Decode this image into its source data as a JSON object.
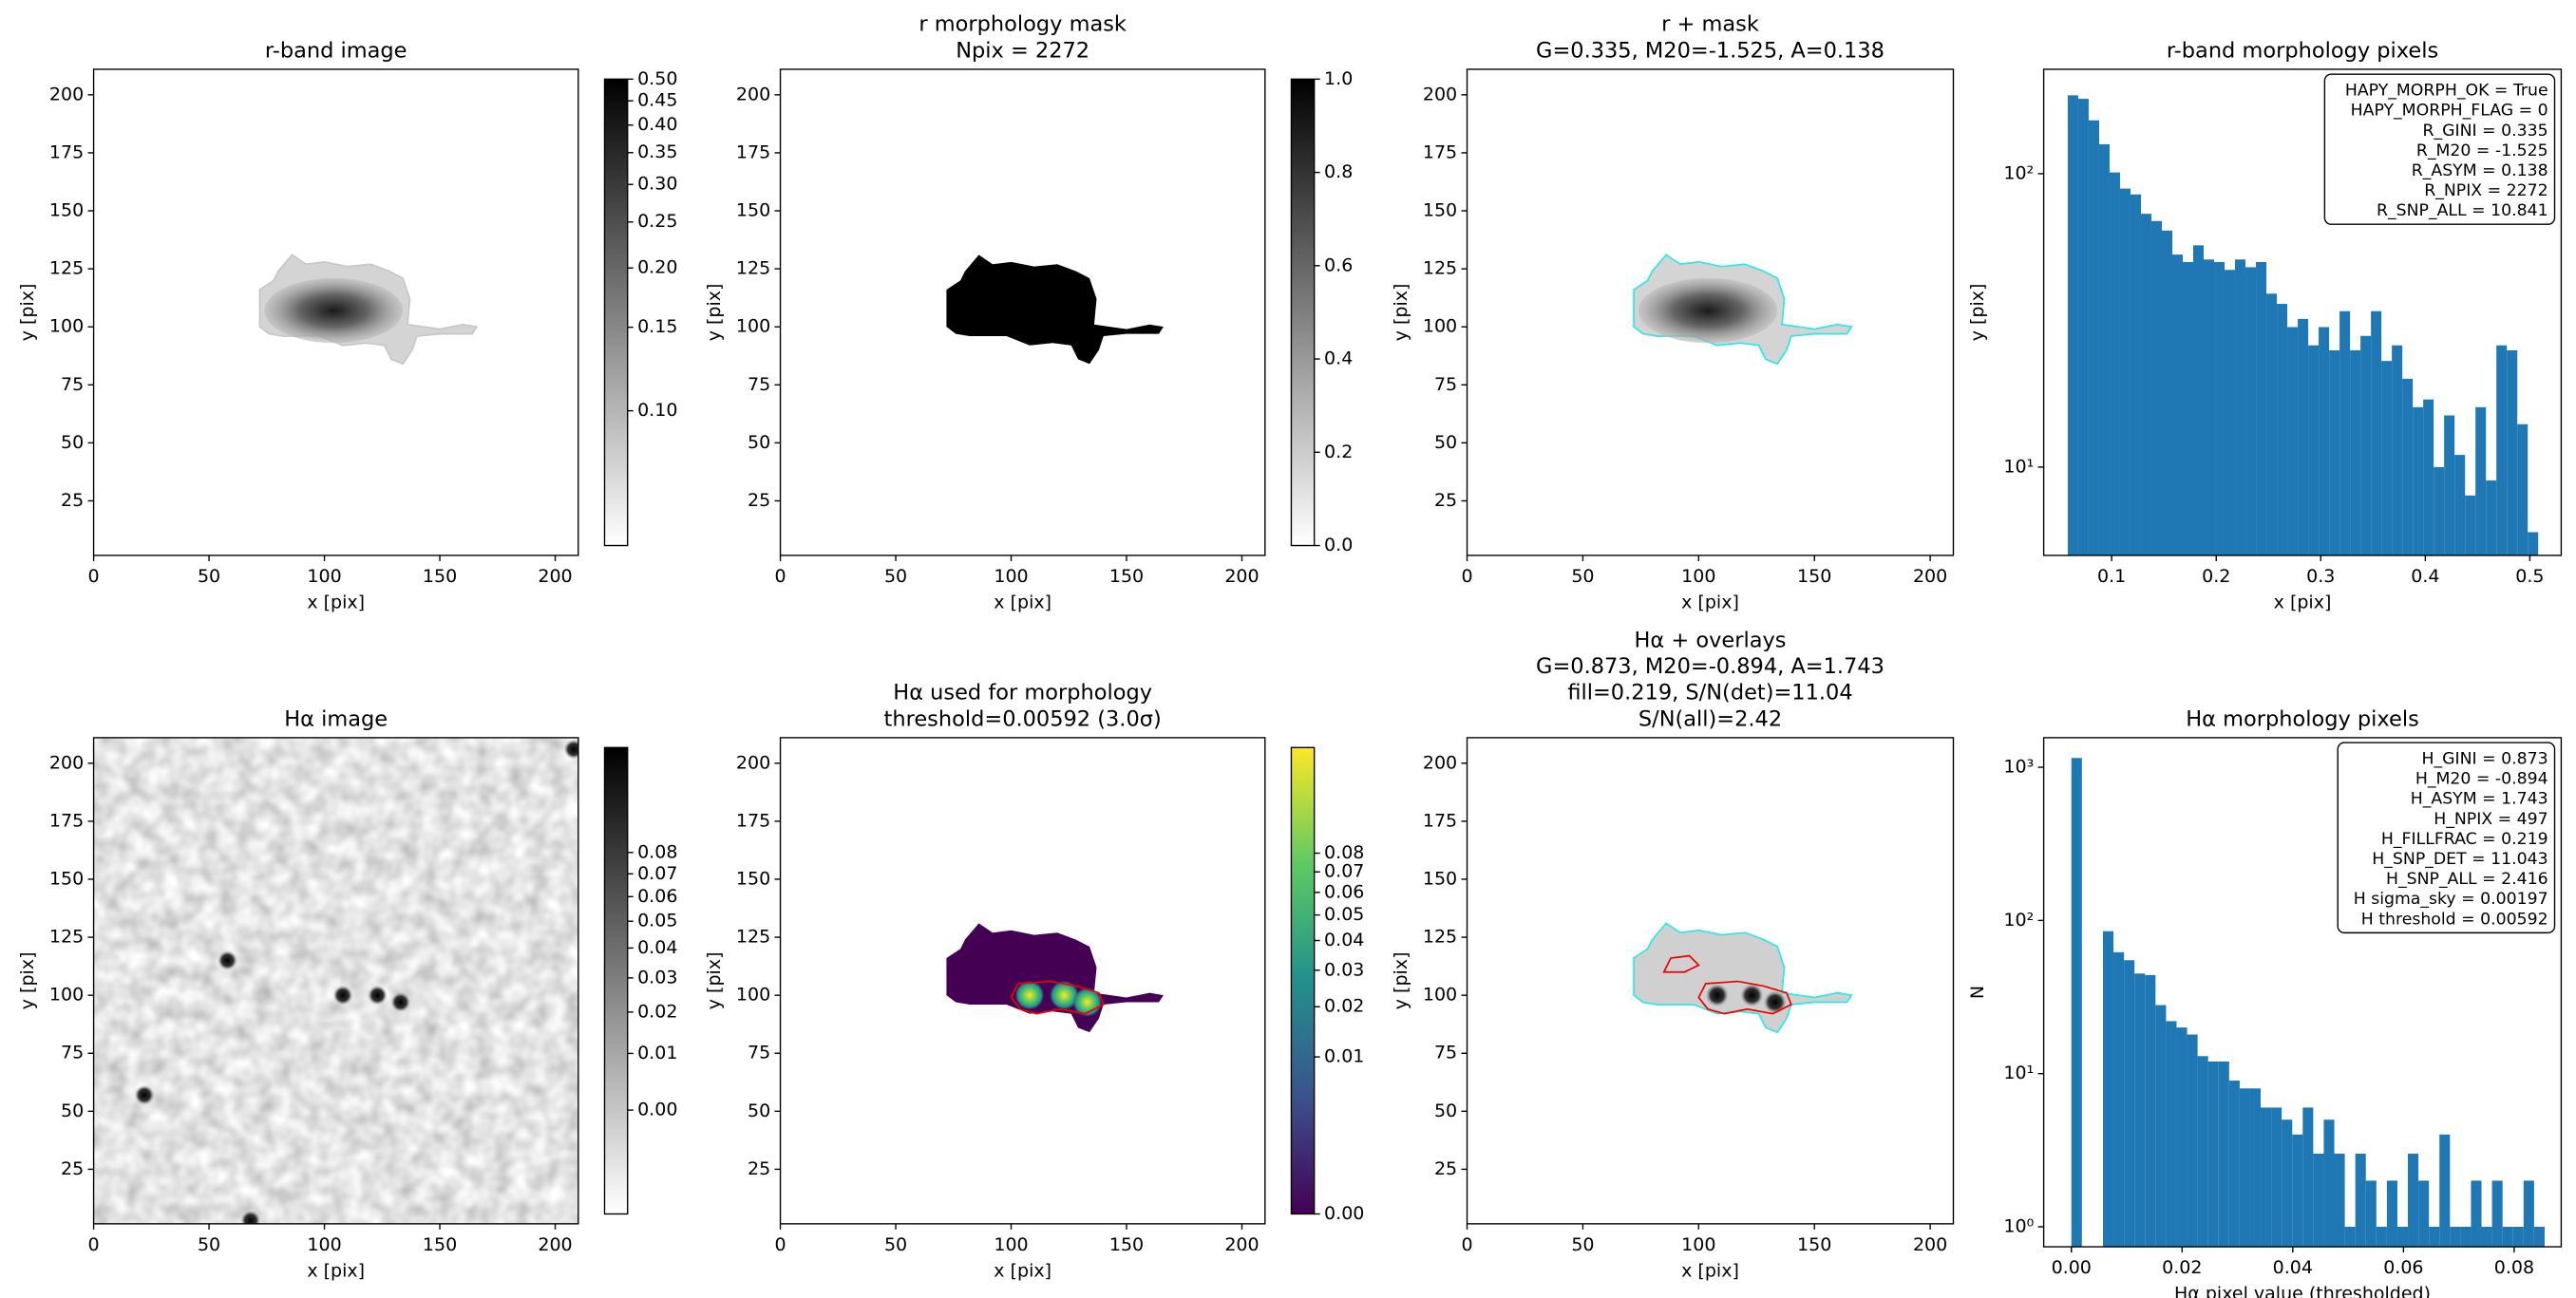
{
  "chart_data": [
    {
      "type": "image",
      "title": [
        "r-band image"
      ],
      "xlabel": "x [pix]",
      "ylabel": "y [pix]",
      "xlim": [
        0,
        210
      ],
      "ylim": [
        1.5,
        211
      ],
      "xticks": [
        0,
        50,
        100,
        150,
        200
      ],
      "yticks": [
        25,
        50,
        75,
        100,
        125,
        150,
        175,
        200
      ],
      "cmap": "gray_r",
      "colorbar": {
        "scale": "log",
        "clim": [
          0.052,
          0.5
        ],
        "ticks": [
          {
            "value": 0.1,
            "label": "0.10"
          },
          0.15,
          {
            "value": 0.2,
            "label": "0.20"
          },
          0.25,
          {
            "value": 0.3,
            "label": "0.30"
          },
          0.35,
          {
            "value": 0.4,
            "label": "0.40"
          },
          0.45,
          {
            "value": 0.5,
            "label": "0.50"
          }
        ]
      }
    },
    {
      "type": "image",
      "title": [
        "r morphology mask",
        "Npix = 2272"
      ],
      "xlabel": "x [pix]",
      "ylabel": "y [pix]",
      "xlim": [
        0,
        210
      ],
      "ylim": [
        1.5,
        211
      ],
      "xticks": [
        0,
        50,
        100,
        150,
        200
      ],
      "yticks": [
        25,
        50,
        75,
        100,
        125,
        150,
        175,
        200
      ],
      "cmap": "gray_r",
      "colorbar": {
        "scale": "linear",
        "clim": [
          0,
          1
        ],
        "ticks": [
          {
            "value": 0,
            "label": "0.0"
          },
          0.2,
          0.4,
          0.6,
          0.8,
          {
            "value": 1,
            "label": "1.0"
          }
        ]
      }
    },
    {
      "type": "image",
      "title": [
        "r + mask",
        "G=0.335, M20=-1.525, A=0.138"
      ],
      "xlabel": "x [pix]",
      "ylabel": "y [pix]",
      "xlim": [
        0,
        210
      ],
      "ylim": [
        1.5,
        211
      ],
      "xticks": [
        0,
        50,
        100,
        150,
        200
      ],
      "yticks": [
        25,
        50,
        75,
        100,
        125,
        150,
        175,
        200
      ],
      "cmap": "gray_r"
    },
    {
      "type": "histogram",
      "title": [
        "r-band morphology pixels"
      ],
      "xlabel": "x [pix]",
      "ylabel": "y [pix]",
      "xlim": [
        0.035,
        0.53
      ],
      "ylim": [
        5,
        227
      ],
      "yscale": "log",
      "xticks": [
        0.1,
        0.2,
        0.3,
        0.4,
        0.5
      ],
      "yticks": [
        {
          "value": 10,
          "label": "10¹"
        },
        {
          "value": 100,
          "label": "10²"
        }
      ],
      "color": "#1f77b4",
      "bins": [
        0.058,
        0.068,
        0.078,
        0.088,
        0.098,
        0.108,
        0.118,
        0.128,
        0.138,
        0.148,
        0.158,
        0.168,
        0.178,
        0.188,
        0.198,
        0.208,
        0.218,
        0.228,
        0.238,
        0.248,
        0.258,
        0.268,
        0.278,
        0.288,
        0.298,
        0.308,
        0.318,
        0.328,
        0.338,
        0.348,
        0.358,
        0.368,
        0.378,
        0.388,
        0.398,
        0.408,
        0.418,
        0.428,
        0.438,
        0.448,
        0.458,
        0.468,
        0.478,
        0.488,
        0.498,
        0.508
      ],
      "counts": [
        185,
        180,
        152,
        126,
        101,
        89,
        85,
        73,
        69,
        64,
        53,
        50,
        57,
        51,
        50,
        47,
        51,
        48,
        50,
        39,
        36,
        30,
        32,
        26,
        30,
        25,
        34,
        25,
        28,
        34,
        23,
        26,
        20,
        16,
        17,
        10,
        15,
        11,
        8,
        16,
        9,
        26,
        25,
        14,
        6
      ],
      "annotation": [
        "HAPY_MORPH_OK = True",
        "HAPY_MORPH_FLAG = 0",
        "R_GINI = 0.335",
        "R_M20 = -1.525",
        "R_ASYM = 0.138",
        "R_NPIX = 2272",
        "R_SNP_ALL = 10.841"
      ]
    },
    {
      "type": "image",
      "title": [
        "Hα image"
      ],
      "xlabel": "x [pix]",
      "ylabel": "y [pix]",
      "xlim": [
        0,
        210
      ],
      "ylim": [
        1.5,
        211
      ],
      "xticks": [
        0,
        50,
        100,
        150,
        200
      ],
      "yticks": [
        25,
        50,
        75,
        100,
        125,
        150,
        175,
        200
      ],
      "cmap": "gray_r",
      "colorbar": {
        "scale": "power",
        "gamma": 0.5,
        "clim": [
          -0.0072,
          0.138
        ],
        "ticks": [
          {
            "value": 0,
            "label": "0.00"
          },
          0.01,
          0.02,
          0.03,
          0.04,
          0.05,
          0.06,
          0.07,
          0.08
        ]
      }
    },
    {
      "type": "image",
      "title": [
        "Hα used for morphology",
        "threshold=0.00592 (3.0σ)"
      ],
      "xlabel": "x [pix]",
      "ylabel": "y [pix]",
      "xlim": [
        0,
        210
      ],
      "ylim": [
        1.5,
        211
      ],
      "xticks": [
        0,
        50,
        100,
        150,
        200
      ],
      "yticks": [
        25,
        50,
        75,
        100,
        125,
        150,
        175,
        200
      ],
      "cmap": "viridis",
      "colorbar": {
        "scale": "power",
        "gamma": 0.4,
        "clim": [
          0,
          0.152
        ],
        "ticks": [
          {
            "value": 0,
            "label": "0.00"
          },
          0.01,
          0.02,
          0.03,
          0.04,
          0.05,
          0.06,
          0.07,
          0.08
        ]
      }
    },
    {
      "type": "image",
      "title": [
        "Hα + overlays",
        "G=0.873, M20=-0.894, A=1.743",
        "fill=0.219, S/N(det)=11.04",
        "S/N(all)=2.42"
      ],
      "xlabel": "x [pix]",
      "ylabel": "y [pix]",
      "xlim": [
        0,
        210
      ],
      "ylim": [
        1.5,
        211
      ],
      "xticks": [
        0,
        50,
        100,
        150,
        200
      ],
      "yticks": [
        25,
        50,
        75,
        100,
        125,
        150,
        175,
        200
      ],
      "cmap": "gray_r"
    },
    {
      "type": "histogram",
      "title": [
        "Hα morphology pixels"
      ],
      "xlabel": "Hα pixel value (thresholded)",
      "ylabel": "N",
      "xlim": [
        -0.005,
        0.0885
      ],
      "ylim": [
        0.74,
        1560
      ],
      "yscale": "log",
      "xticks": [
        {
          "value": 0,
          "label": "0.00"
        },
        0.02,
        0.04,
        0.06,
        0.08
      ],
      "yticks": [
        {
          "value": 1,
          "label": "10⁰"
        },
        {
          "value": 10,
          "label": "10¹"
        },
        {
          "value": 100,
          "label": "10²"
        },
        {
          "value": 1000,
          "label": "10³"
        }
      ],
      "color": "#1f77b4",
      "bins": [
        0,
        0.0019,
        0.0038,
        0.0057,
        0.0076,
        0.0095,
        0.0114,
        0.0133,
        0.0152,
        0.0171,
        0.019,
        0.0209,
        0.0228,
        0.0247,
        0.0266,
        0.0285,
        0.0304,
        0.0323,
        0.0342,
        0.0361,
        0.038,
        0.0399,
        0.0418,
        0.0437,
        0.0456,
        0.0475,
        0.0494,
        0.0513,
        0.0532,
        0.0551,
        0.057,
        0.0589,
        0.0608,
        0.0627,
        0.0646,
        0.0665,
        0.0684,
        0.0703,
        0.0722,
        0.0741,
        0.076,
        0.0779,
        0.0798,
        0.0817,
        0.0836,
        0.0855
      ],
      "counts": [
        1150,
        0,
        0,
        85,
        62,
        55,
        45,
        44,
        28,
        22,
        20,
        18,
        13,
        12,
        12,
        9,
        8,
        8,
        6,
        6,
        5,
        4,
        6,
        3,
        5,
        3,
        1,
        3,
        2,
        1,
        2,
        1,
        3,
        2,
        1,
        4,
        1,
        1,
        2,
        1,
        2,
        1,
        1,
        2,
        1
      ],
      "annotation": [
        "H_GINI = 0.873",
        "H_M20 = -0.894",
        "H_ASYM = 1.743",
        "H_NPIX = 497",
        "H_FILLFRAC = 0.219",
        "H_SNP_DET = 11.043",
        "H_SNP_ALL = 2.416",
        "H sigma_sky = 0.00197",
        "H threshold = 0.00592"
      ]
    }
  ]
}
